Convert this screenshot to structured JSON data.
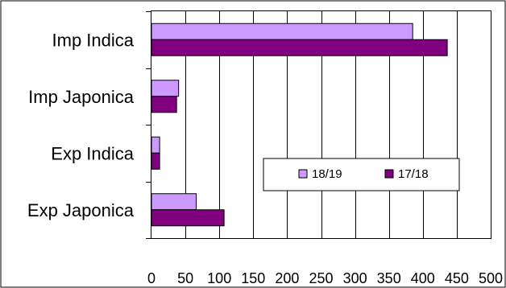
{
  "chart_data": {
    "type": "bar",
    "orientation": "horizontal",
    "categories": [
      "Imp Indica",
      "Imp Japonica",
      "Exp Indica",
      "Exp Japonica"
    ],
    "series": [
      {
        "name": "18/19",
        "values": [
          385,
          40,
          12,
          66
        ],
        "color": "#CC99FF"
      },
      {
        "name": "17/18",
        "values": [
          436,
          37,
          12,
          107
        ],
        "color": "#800080"
      }
    ],
    "xlim": [
      0,
      500
    ],
    "xticks": [
      "0",
      "50",
      "100",
      "150",
      "200",
      "250",
      "300",
      "350",
      "400",
      "450",
      "500"
    ],
    "grid": true,
    "legend_position": "center-right",
    "title": "",
    "xlabel": "",
    "ylabel": ""
  }
}
